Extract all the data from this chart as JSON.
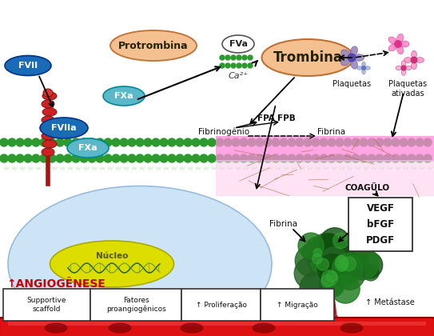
{
  "bg_color": "#ffffff",
  "cell_bg": "#cce4f5",
  "cell_border": "#99bbdd",
  "membrane_green": "#2d9a2d",
  "blood_vessel_color": "#dd1111",
  "labels": {
    "FVII": "FVII",
    "FVIIa": "FVIIa",
    "FXa_top": "FXa",
    "FXa_bot": "FXa",
    "Protrombina": "Protrombina",
    "FVa": "FVa",
    "Ca2": "Ca²⁺",
    "Trombina": "Trombina",
    "Plaquetas": "Plaquetas",
    "Plaquetas_ativadas": "Plaquetas\nativadas",
    "FPA": "FPA",
    "FPB": "FPB",
    "Fibrinogenio": "Fibrinogênio",
    "Fibrina_top": "Fibrina",
    "Fibrina_bot": "Fibrina",
    "COAGULO": "COAGÜLO",
    "VEGF": "VEGF",
    "bFGF": "bFGF",
    "PDGF": "PDGF",
    "Nucleo": "Núcleo",
    "ANGIOGENESE": "↑ANGIOGÊNESE",
    "Supportive": "Supportive\nscaffold",
    "Fatores": "Fatores\nproangiogênicos",
    "Proliferacao": "↑ Proliferação",
    "Migracao": "↑ Migração",
    "Metastase": "↑ Metástase"
  },
  "colors": {
    "FVII_bg": "#1a6bb5",
    "FVIIa_bg": "#1a6bb5",
    "FXa_bg": "#5ab8c8",
    "Protrombina_bg": "#f5c090",
    "FVa_bg": "#ffffff",
    "Trombina_bg": "#f5c090",
    "Nucleo_bg": "#dddd00",
    "pink_band": "#ff88dd",
    "light_pink": "#ffccee",
    "arrow_color": "#111111"
  }
}
